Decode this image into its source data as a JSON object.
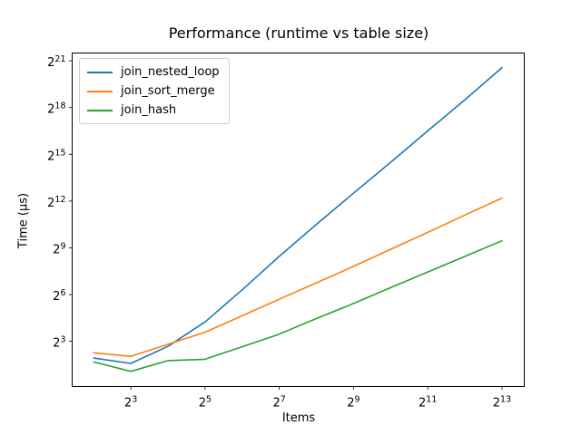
{
  "chart_data": {
    "type": "line",
    "title": "Performance (runtime vs table size)",
    "xlabel": "Items",
    "ylabel": "Time (μs)",
    "x_scale": "log2",
    "y_scale": "log2",
    "x": [
      4,
      8,
      16,
      32,
      64,
      128,
      256,
      512,
      1024,
      2048,
      4096,
      8192
    ],
    "series": [
      {
        "name": "join_nested_loop",
        "color": "#1f77b4",
        "values": [
          3.8,
          3.0,
          6.4,
          19,
          79,
          350,
          1450,
          5800,
          23000,
          93000,
          370000,
          1550000
        ]
      },
      {
        "name": "join_sort_merge",
        "color": "#ff7f0e",
        "values": [
          4.8,
          4.1,
          7.0,
          12,
          25,
          52,
          108,
          225,
          480,
          1020,
          2200,
          4700
        ]
      },
      {
        "name": "join_hash",
        "color": "#2ca02c",
        "values": [
          3.2,
          2.1,
          3.4,
          3.6,
          6.3,
          11,
          22,
          43,
          87,
          175,
          350,
          700
        ]
      }
    ],
    "tick_base": 2,
    "x_tick_exponents": [
      3,
      5,
      7,
      9,
      11,
      13
    ],
    "y_tick_exponents": [
      3,
      6,
      9,
      12,
      15,
      18,
      21
    ],
    "xlim_log2": [
      1.42,
      13.6
    ],
    "ylim_log2": [
      0.1,
      21.5
    ],
    "legend_position": "upper left",
    "grid": false,
    "background_color": "#ffffff",
    "axes_edge_color": "#000000"
  }
}
